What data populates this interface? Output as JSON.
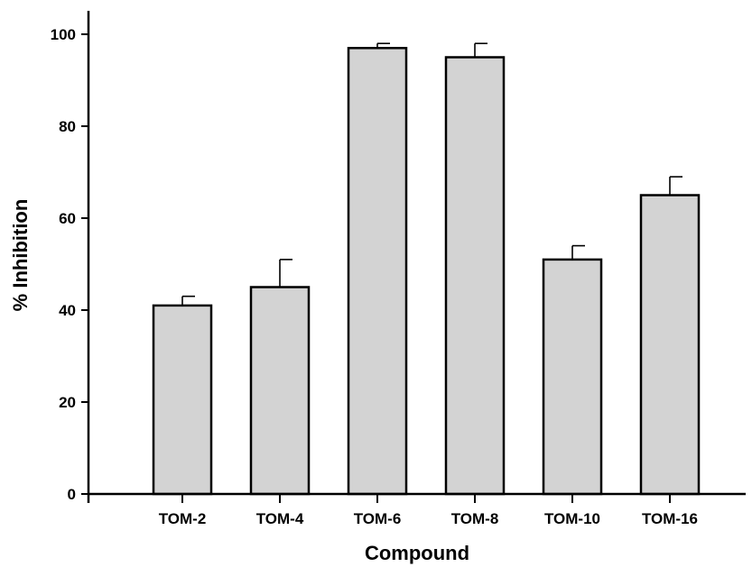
{
  "chart_data": {
    "type": "bar",
    "title": "",
    "xlabel": "Compound",
    "ylabel": "% Inhibition",
    "categories": [
      "TOM-2",
      "TOM-4",
      "TOM-6",
      "TOM-8",
      "TOM-10",
      "TOM-16"
    ],
    "values": [
      41,
      45,
      97,
      95,
      51,
      65
    ],
    "errors": [
      2,
      6,
      1,
      3,
      3,
      4
    ],
    "ylim": [
      0,
      100
    ],
    "yticks": [
      "0",
      "20",
      "40",
      "60",
      "80",
      "100"
    ],
    "grid": false,
    "legend": "none",
    "bar_color": "#d3d3d3",
    "edge_color": "#000000"
  }
}
